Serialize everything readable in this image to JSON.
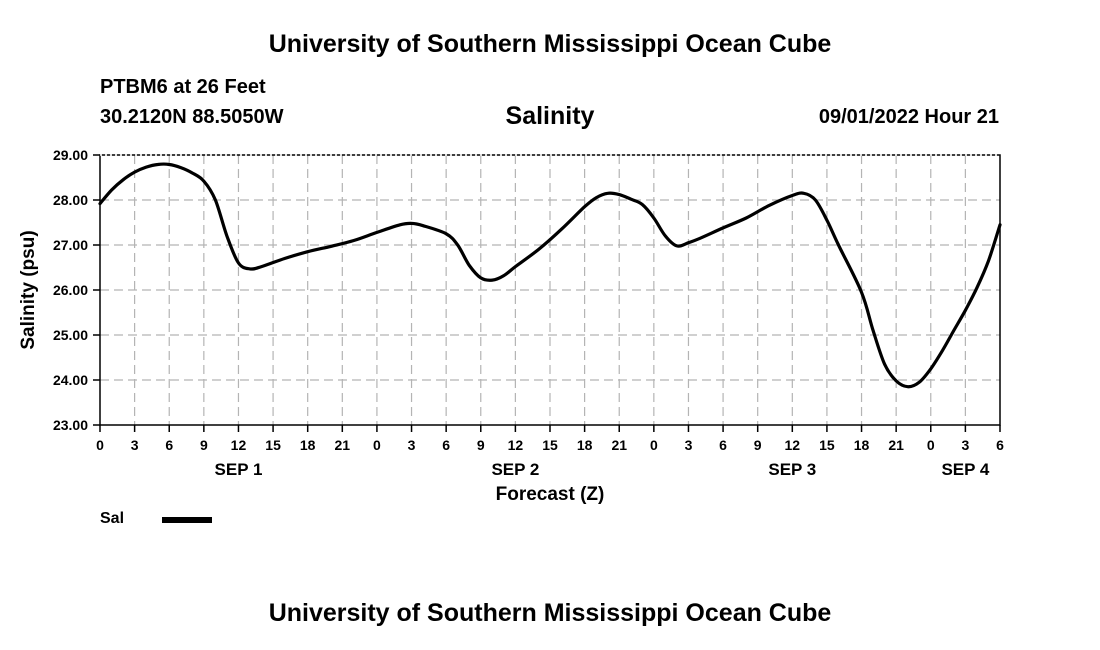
{
  "header": {
    "title": "University of Southern Mississippi Ocean Cube",
    "station": "PTBM6 at 26 Feet",
    "coordinates": "30.2120N  88.5050W",
    "variable": "Salinity",
    "datetime": "09/01/2022 Hour 21"
  },
  "footer": {
    "title": "University of Southern Mississippi Ocean Cube"
  },
  "legend": {
    "label": "Sal",
    "color": "#000000"
  },
  "chart_data": {
    "type": "line",
    "title": "Salinity",
    "xlabel": "Forecast (Z)",
    "ylabel": "Salinity (psu)",
    "ylim": [
      23.0,
      29.0
    ],
    "yticks": [
      "23.00",
      "24.00",
      "25.00",
      "26.00",
      "27.00",
      "28.00",
      "29.00"
    ],
    "xlim_hours": [
      0,
      78
    ],
    "xtick_labels": [
      "0",
      "3",
      "6",
      "9",
      "12",
      "15",
      "18",
      "21",
      "0",
      "3",
      "6",
      "9",
      "12",
      "15",
      "18",
      "21",
      "0",
      "3",
      "6",
      "9",
      "12",
      "15",
      "18",
      "21",
      "0",
      "3",
      "6"
    ],
    "day_labels": [
      {
        "label": "SEP 1",
        "hour": 12
      },
      {
        "label": "SEP 2",
        "hour": 36
      },
      {
        "label": "SEP 3",
        "hour": 60
      },
      {
        "label": "SEP 4",
        "hour": 75
      }
    ],
    "grid": true,
    "series": [
      {
        "name": "Sal",
        "color": "#000000",
        "x_hours": [
          0,
          1,
          2,
          3,
          4,
          5,
          6,
          7,
          8,
          9,
          10,
          11,
          12,
          13,
          14,
          16,
          18,
          20,
          22,
          24,
          26,
          27,
          28,
          30,
          31,
          32,
          33,
          34,
          35,
          36,
          38,
          40,
          42,
          43,
          44,
          45,
          46,
          47,
          48,
          49,
          50,
          51,
          52,
          54,
          56,
          58,
          60,
          61,
          62,
          63,
          64,
          66,
          67,
          68,
          69,
          70,
          71,
          72,
          73,
          74,
          75,
          76,
          77,
          78
        ],
        "values": [
          27.92,
          28.22,
          28.45,
          28.62,
          28.73,
          28.79,
          28.79,
          28.72,
          28.6,
          28.42,
          28.0,
          27.2,
          26.6,
          26.47,
          26.52,
          26.7,
          26.85,
          26.97,
          27.1,
          27.28,
          27.45,
          27.48,
          27.43,
          27.25,
          27.0,
          26.55,
          26.27,
          26.22,
          26.32,
          26.52,
          26.9,
          27.35,
          27.85,
          28.05,
          28.15,
          28.12,
          28.02,
          27.9,
          27.6,
          27.2,
          26.98,
          27.05,
          27.15,
          27.38,
          27.6,
          27.88,
          28.1,
          28.15,
          28.0,
          27.55,
          27.0,
          25.95,
          25.1,
          24.35,
          23.98,
          23.85,
          23.95,
          24.25,
          24.65,
          25.1,
          25.55,
          26.05,
          26.65,
          27.45
        ]
      }
    ]
  }
}
